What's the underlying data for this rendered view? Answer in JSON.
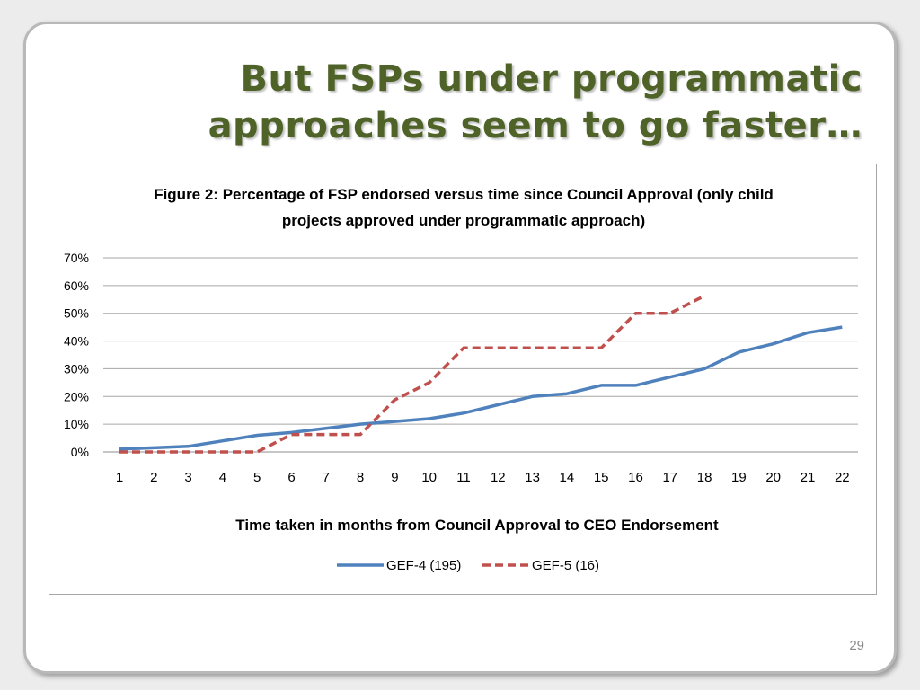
{
  "slide": {
    "title_line1": "But FSPs under programmatic",
    "title_line2": "approaches seem to go faster…",
    "page_number": "29"
  },
  "colors": {
    "title": "#4f6228",
    "gef4": "#4f81bd",
    "gef5": "#c0504d",
    "grid": "#a6a6a6"
  },
  "chart_data": {
    "type": "line",
    "title_line1": "Figure 2: Percentage of FSP endorsed versus time since Council Approval (only child",
    "title_line2": "projects approved under programmatic approach)",
    "xlabel": "Time taken in months from Council Approval to CEO Endorsement",
    "ylabel": "",
    "categories": [
      1,
      2,
      3,
      4,
      5,
      6,
      7,
      8,
      9,
      10,
      11,
      12,
      13,
      14,
      15,
      16,
      17,
      18,
      19,
      20,
      21,
      22
    ],
    "yticks": [
      "0%",
      "10%",
      "20%",
      "30%",
      "40%",
      "50%",
      "60%",
      "70%"
    ],
    "ylim": [
      0,
      70
    ],
    "grid": true,
    "legend_position": "bottom",
    "series": [
      {
        "name": "GEF-4 (195)",
        "style": "solid",
        "color": "#4f81bd",
        "values": [
          1,
          1.5,
          2,
          4,
          6,
          7,
          8.5,
          10,
          11,
          12,
          14,
          17,
          20,
          21,
          24,
          24,
          27,
          30,
          36,
          39,
          43,
          45
        ]
      },
      {
        "name": "GEF-5 (16)",
        "style": "dashed",
        "color": "#c0504d",
        "values": [
          0,
          0,
          0,
          0,
          0,
          6.3,
          6.3,
          6.3,
          18.8,
          25,
          37.5,
          37.5,
          37.5,
          37.5,
          37.5,
          50,
          50,
          56.3,
          null,
          null,
          null,
          null
        ]
      }
    ]
  }
}
